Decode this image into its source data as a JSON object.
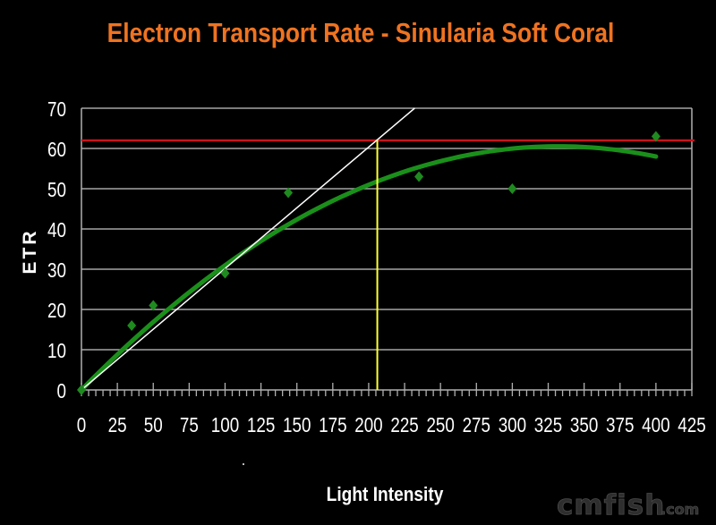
{
  "chart_data": {
    "type": "scatter",
    "title": "Electron Transport Rate - Sinularia Soft Coral",
    "xlabel": "Light Intensity",
    "ylabel": "ETR",
    "xlim": [
      0,
      425
    ],
    "ylim": [
      0,
      70
    ],
    "x_ticks": [
      0,
      25,
      50,
      75,
      100,
      125,
      150,
      175,
      200,
      225,
      250,
      275,
      300,
      325,
      350,
      375,
      400,
      425
    ],
    "y_ticks": [
      0,
      10,
      20,
      30,
      40,
      50,
      60,
      70
    ],
    "x_minor_step": 5,
    "grid": {
      "horizontal": true,
      "vertical": false
    },
    "legend": null,
    "series": [
      {
        "type": "scatter",
        "marker": "diamond",
        "color": "#1f8a1f",
        "x": [
          0,
          35,
          50,
          100,
          144,
          235,
          300,
          400
        ],
        "y": [
          0,
          16,
          21,
          29,
          49,
          53,
          50,
          63
        ]
      },
      {
        "type": "line",
        "style": "polynomial-trendline",
        "color": "#1a901a",
        "coefficients": {
          "a": -0.000549,
          "b": 0.3646,
          "c": 0
        },
        "x_range": [
          0,
          400
        ]
      }
    ],
    "annotations": [
      {
        "type": "hline",
        "y": 62,
        "color": "#c8141e"
      },
      {
        "type": "segment",
        "from": [
          0,
          0
        ],
        "to": [
          232,
          70
        ],
        "color": "#ffffff"
      },
      {
        "type": "vline",
        "x": 206,
        "y_range": [
          0,
          62
        ],
        "color": "#ffff33"
      }
    ]
  },
  "watermark": {
    "text": "cmfish",
    "suffix": ".com"
  }
}
